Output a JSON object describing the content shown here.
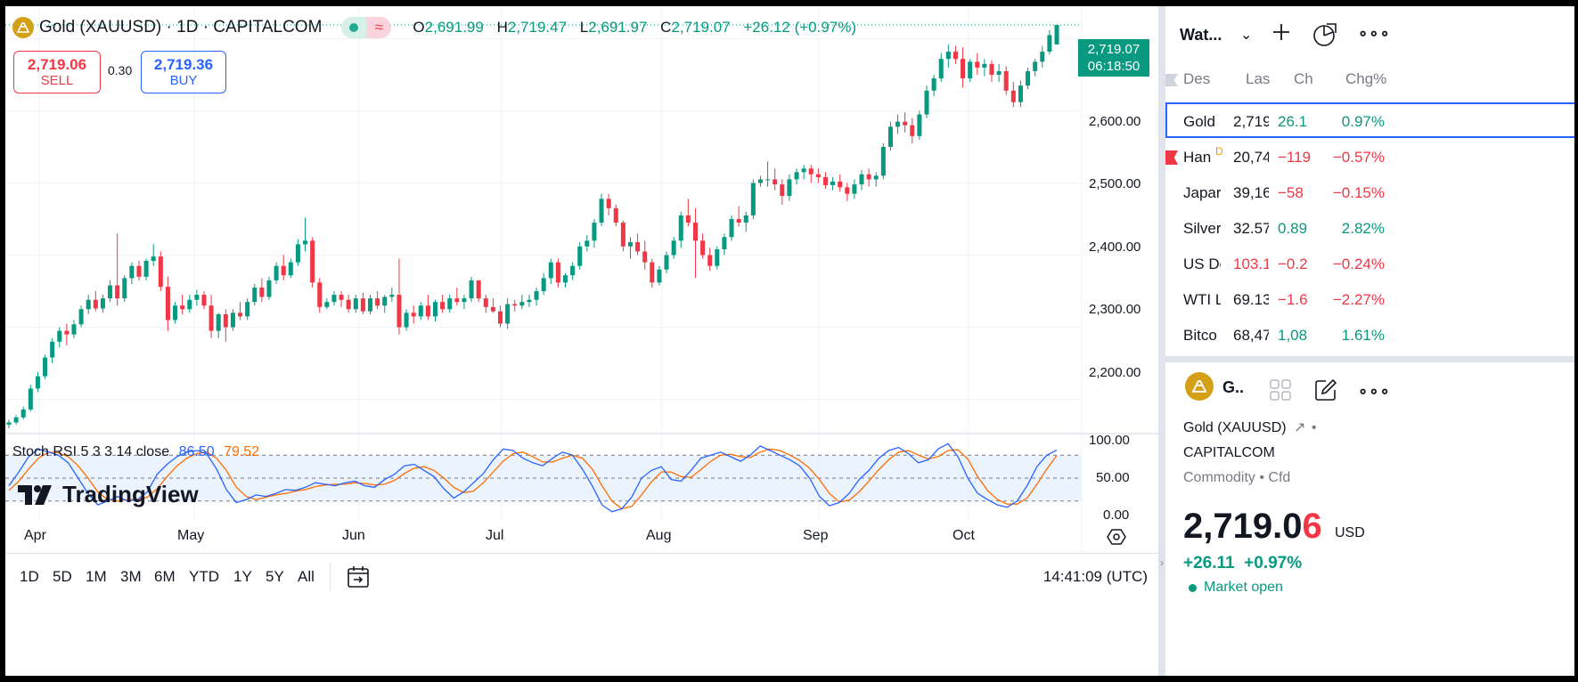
{
  "symbol": {
    "title": "Gold (XAUUSD) · 1D · CAPITALCOM",
    "ohlc": {
      "o_label": "O",
      "o": "2,691.99",
      "h_label": "H",
      "h": "2,719.47",
      "l_label": "L",
      "l": "2,691.97",
      "c_label": "C",
      "c": "2,719.07",
      "change": "+26.12 (+0.97%)"
    },
    "wave_glyph": "≈"
  },
  "trade": {
    "sell_price": "2,719.06",
    "sell_label": "SELL",
    "spread": "0.30",
    "buy_price": "2,719.36",
    "buy_label": "BUY"
  },
  "price_tag": {
    "price": "2,719.07",
    "countdown": "06:18:50"
  },
  "price_axis": [
    "2,600.00",
    "2,500.00",
    "2,400.00",
    "2,300.00",
    "2,200.00"
  ],
  "stoch": {
    "label": "Stoch RSI 5 3 3 14 close",
    "k": "86.50",
    "d": "79.52",
    "axis": [
      "100.00",
      "50.00",
      "0.00"
    ]
  },
  "months": [
    "Apr",
    "May",
    "Jun",
    "Jul",
    "Aug",
    "Sep",
    "Oct"
  ],
  "brand": "TradingView",
  "ranges": [
    "1D",
    "5D",
    "1M",
    "3M",
    "6M",
    "YTD",
    "1Y",
    "5Y",
    "All"
  ],
  "clock": "14:41:09 (UTC)",
  "chart_data": {
    "type": "candlestick",
    "price_range": [
      2155,
      2745
    ],
    "candles_ohlc": [
      [
        2165,
        2172,
        2160,
        2168
      ],
      [
        2168,
        2178,
        2165,
        2175
      ],
      [
        2175,
        2190,
        2172,
        2186
      ],
      [
        2186,
        2220,
        2183,
        2215
      ],
      [
        2215,
        2238,
        2210,
        2232
      ],
      [
        2232,
        2262,
        2228,
        2258
      ],
      [
        2258,
        2285,
        2250,
        2280
      ],
      [
        2280,
        2300,
        2272,
        2295
      ],
      [
        2295,
        2305,
        2275,
        2290
      ],
      [
        2290,
        2310,
        2285,
        2304
      ],
      [
        2304,
        2330,
        2300,
        2325
      ],
      [
        2325,
        2345,
        2318,
        2338
      ],
      [
        2338,
        2350,
        2322,
        2326
      ],
      [
        2326,
        2345,
        2320,
        2340
      ],
      [
        2340,
        2365,
        2335,
        2358
      ],
      [
        2358,
        2430,
        2330,
        2340
      ],
      [
        2340,
        2372,
        2335,
        2368
      ],
      [
        2368,
        2390,
        2360,
        2385
      ],
      [
        2385,
        2392,
        2365,
        2370
      ],
      [
        2370,
        2395,
        2365,
        2392
      ],
      [
        2392,
        2415,
        2385,
        2398
      ],
      [
        2398,
        2405,
        2350,
        2356
      ],
      [
        2356,
        2370,
        2295,
        2310
      ],
      [
        2310,
        2335,
        2305,
        2330
      ],
      [
        2330,
        2345,
        2318,
        2325
      ],
      [
        2325,
        2345,
        2320,
        2338
      ],
      [
        2338,
        2352,
        2330,
        2345
      ],
      [
        2345,
        2350,
        2325,
        2330
      ],
      [
        2330,
        2345,
        2285,
        2295
      ],
      [
        2295,
        2320,
        2285,
        2318
      ],
      [
        2318,
        2325,
        2280,
        2300
      ],
      [
        2300,
        2325,
        2295,
        2320
      ],
      [
        2320,
        2335,
        2310,
        2315
      ],
      [
        2315,
        2340,
        2310,
        2335
      ],
      [
        2335,
        2360,
        2330,
        2355
      ],
      [
        2355,
        2368,
        2335,
        2342
      ],
      [
        2342,
        2370,
        2338,
        2365
      ],
      [
        2365,
        2390,
        2360,
        2385
      ],
      [
        2385,
        2400,
        2365,
        2372
      ],
      [
        2372,
        2395,
        2368,
        2390
      ],
      [
        2390,
        2422,
        2385,
        2415
      ],
      [
        2415,
        2452,
        2405,
        2420
      ],
      [
        2420,
        2425,
        2355,
        2362
      ],
      [
        2362,
        2368,
        2320,
        2328
      ],
      [
        2328,
        2340,
        2325,
        2335
      ],
      [
        2335,
        2350,
        2330,
        2345
      ],
      [
        2345,
        2350,
        2328,
        2338
      ],
      [
        2338,
        2345,
        2320,
        2325
      ],
      [
        2325,
        2345,
        2320,
        2340
      ],
      [
        2340,
        2348,
        2318,
        2322
      ],
      [
        2322,
        2345,
        2318,
        2340
      ],
      [
        2340,
        2350,
        2325,
        2330
      ],
      [
        2330,
        2345,
        2320,
        2342
      ],
      [
        2342,
        2355,
        2335,
        2345
      ],
      [
        2345,
        2395,
        2290,
        2300
      ],
      [
        2300,
        2325,
        2295,
        2320
      ],
      [
        2320,
        2330,
        2305,
        2315
      ],
      [
        2315,
        2335,
        2310,
        2330
      ],
      [
        2330,
        2345,
        2310,
        2315
      ],
      [
        2315,
        2338,
        2308,
        2335
      ],
      [
        2335,
        2345,
        2320,
        2325
      ],
      [
        2325,
        2345,
        2320,
        2340
      ],
      [
        2340,
        2355,
        2330,
        2335
      ],
      [
        2335,
        2345,
        2325,
        2340
      ],
      [
        2340,
        2370,
        2335,
        2365
      ],
      [
        2365,
        2365,
        2335,
        2340
      ],
      [
        2340,
        2345,
        2320,
        2328
      ],
      [
        2328,
        2340,
        2320,
        2322
      ],
      [
        2322,
        2330,
        2300,
        2305
      ],
      [
        2305,
        2340,
        2298,
        2332
      ],
      [
        2332,
        2338,
        2322,
        2330
      ],
      [
        2330,
        2345,
        2325,
        2335
      ],
      [
        2335,
        2345,
        2328,
        2338
      ],
      [
        2338,
        2355,
        2330,
        2350
      ],
      [
        2350,
        2375,
        2345,
        2368
      ],
      [
        2368,
        2395,
        2360,
        2390
      ],
      [
        2390,
        2395,
        2355,
        2362
      ],
      [
        2362,
        2375,
        2355,
        2372
      ],
      [
        2372,
        2390,
        2365,
        2385
      ],
      [
        2385,
        2418,
        2380,
        2412
      ],
      [
        2412,
        2428,
        2405,
        2420
      ],
      [
        2420,
        2450,
        2410,
        2445
      ],
      [
        2445,
        2485,
        2440,
        2478
      ],
      [
        2478,
        2485,
        2455,
        2465
      ],
      [
        2465,
        2470,
        2440,
        2445
      ],
      [
        2445,
        2448,
        2405,
        2412
      ],
      [
        2412,
        2425,
        2395,
        2418
      ],
      [
        2418,
        2430,
        2400,
        2405
      ],
      [
        2405,
        2420,
        2380,
        2390
      ],
      [
        2390,
        2395,
        2355,
        2362
      ],
      [
        2362,
        2385,
        2358,
        2380
      ],
      [
        2380,
        2405,
        2375,
        2400
      ],
      [
        2400,
        2425,
        2395,
        2420
      ],
      [
        2420,
        2460,
        2410,
        2455
      ],
      [
        2455,
        2478,
        2440,
        2445
      ],
      [
        2445,
        2465,
        2368,
        2420
      ],
      [
        2420,
        2430,
        2395,
        2400
      ],
      [
        2400,
        2410,
        2378,
        2385
      ],
      [
        2385,
        2412,
        2380,
        2408
      ],
      [
        2408,
        2430,
        2400,
        2425
      ],
      [
        2425,
        2455,
        2420,
        2450
      ],
      [
        2450,
        2468,
        2440,
        2445
      ],
      [
        2445,
        2460,
        2432,
        2455
      ],
      [
        2455,
        2505,
        2450,
        2500
      ],
      [
        2500,
        2510,
        2495,
        2505
      ],
      [
        2505,
        2530,
        2495,
        2505
      ],
      [
        2505,
        2520,
        2490,
        2498
      ],
      [
        2498,
        2505,
        2470,
        2482
      ],
      [
        2482,
        2512,
        2475,
        2505
      ],
      [
        2505,
        2520,
        2498,
        2515
      ],
      [
        2515,
        2525,
        2505,
        2520
      ],
      [
        2520,
        2525,
        2500,
        2512
      ],
      [
        2512,
        2520,
        2500,
        2508
      ],
      [
        2508,
        2515,
        2492,
        2497
      ],
      [
        2497,
        2508,
        2490,
        2502
      ],
      [
        2502,
        2512,
        2488,
        2494
      ],
      [
        2494,
        2500,
        2475,
        2485
      ],
      [
        2485,
        2505,
        2478,
        2498
      ],
      [
        2498,
        2518,
        2490,
        2512
      ],
      [
        2512,
        2520,
        2495,
        2505
      ],
      [
        2505,
        2515,
        2495,
        2510
      ],
      [
        2510,
        2555,
        2505,
        2550
      ],
      [
        2550,
        2585,
        2545,
        2578
      ],
      [
        2578,
        2595,
        2568,
        2585
      ],
      [
        2585,
        2598,
        2570,
        2580
      ],
      [
        2580,
        2590,
        2555,
        2565
      ],
      [
        2565,
        2600,
        2560,
        2595
      ],
      [
        2595,
        2635,
        2590,
        2628
      ],
      [
        2628,
        2650,
        2620,
        2645
      ],
      [
        2645,
        2680,
        2640,
        2672
      ],
      [
        2672,
        2692,
        2660,
        2682
      ],
      [
        2682,
        2690,
        2665,
        2672
      ],
      [
        2672,
        2688,
        2632,
        2645
      ],
      [
        2645,
        2672,
        2640,
        2668
      ],
      [
        2668,
        2680,
        2650,
        2660
      ],
      [
        2660,
        2672,
        2648,
        2665
      ],
      [
        2665,
        2670,
        2640,
        2650
      ],
      [
        2650,
        2665,
        2640,
        2655
      ],
      [
        2655,
        2662,
        2622,
        2628
      ],
      [
        2628,
        2640,
        2605,
        2612
      ],
      [
        2612,
        2642,
        2605,
        2635
      ],
      [
        2635,
        2660,
        2630,
        2655
      ],
      [
        2655,
        2672,
        2648,
        2668
      ],
      [
        2668,
        2690,
        2660,
        2682
      ],
      [
        2682,
        2712,
        2678,
        2705
      ],
      [
        2692,
        2719.47,
        2691.97,
        2719.07
      ]
    ],
    "stoch_k": [
      40,
      58,
      78,
      88,
      84,
      80,
      70,
      50,
      30,
      15,
      20,
      26,
      20,
      22,
      32,
      55,
      68,
      78,
      84,
      86,
      82,
      62,
      35,
      18,
      22,
      28,
      26,
      30,
      35,
      34,
      38,
      44,
      42,
      40,
      44,
      46,
      40,
      38,
      48,
      55,
      66,
      68,
      60,
      52,
      36,
      24,
      32,
      44,
      56,
      74,
      88,
      86,
      76,
      70,
      66,
      76,
      84,
      80,
      62,
      40,
      15,
      6,
      10,
      25,
      50,
      60,
      65,
      48,
      46,
      60,
      76,
      80,
      84,
      78,
      72,
      80,
      92,
      86,
      80,
      74,
      66,
      50,
      26,
      14,
      18,
      30,
      48,
      60,
      76,
      86,
      90,
      82,
      70,
      74,
      88,
      95,
      78,
      50,
      30,
      22,
      15,
      12,
      20,
      40,
      65,
      80,
      86.5
    ],
    "stoch_d": [
      34,
      46,
      62,
      76,
      84,
      83,
      78,
      66,
      50,
      32,
      22,
      20,
      22,
      22,
      25,
      36,
      52,
      66,
      76,
      82,
      84,
      76,
      60,
      38,
      26,
      22,
      25,
      28,
      30,
      33,
      35,
      39,
      41,
      42,
      42,
      44,
      43,
      41,
      42,
      47,
      56,
      63,
      65,
      60,
      50,
      38,
      31,
      33,
      44,
      58,
      72,
      82,
      84,
      78,
      71,
      71,
      76,
      80,
      76,
      62,
      40,
      20,
      10,
      13,
      28,
      45,
      58,
      58,
      52,
      51,
      61,
      72,
      80,
      81,
      78,
      77,
      84,
      88,
      86,
      80,
      73,
      63,
      48,
      30,
      19,
      21,
      32,
      46,
      61,
      74,
      84,
      86,
      80,
      75,
      78,
      86,
      87,
      75,
      52,
      34,
      22,
      16,
      16,
      24,
      42,
      62,
      79.52
    ]
  },
  "watchlist": {
    "title": "Wat...",
    "columns": [
      "Des",
      "Las",
      "Ch",
      "Chg%"
    ],
    "rows": [
      {
        "name": "Gold",
        "last": "2,719",
        "ch": "26.1",
        "chg": "0.97%",
        "dir": "pos",
        "selected": true
      },
      {
        "name": "Han",
        "last": "20,74",
        "ch": "−119",
        "chg": "−0.57%",
        "dir": "neg",
        "flag": true,
        "d": "D"
      },
      {
        "name": "Japar",
        "last": "39,16",
        "ch": "−58",
        "chg": "−0.15%",
        "dir": "neg"
      },
      {
        "name": "Silver",
        "last": "32.57",
        "ch": "0.89",
        "chg": "2.82%",
        "dir": "pos"
      },
      {
        "name": "US Dc",
        "last": "103.1",
        "ch": "−0.2",
        "chg": "−0.24%",
        "dir": "neg",
        "last_red": true
      },
      {
        "name": "WTI L",
        "last": "69.13",
        "ch": "−1.6",
        "chg": "−2.27%",
        "dir": "neg"
      },
      {
        "name": "Bitco",
        "last": "68,47",
        "ch": "1,08",
        "chg": "1.61%",
        "dir": "pos"
      }
    ]
  },
  "details": {
    "short_title": "G..",
    "name": "Gold (XAUUSD)",
    "exchange": "CAPITALCOM",
    "type": "Commodity • Cfd",
    "price_main": "2,719.0",
    "price_last": "6",
    "currency": "USD",
    "change": "+26.11",
    "change_pct": "+0.97%",
    "market_status": "Market open"
  },
  "colors": {
    "up": "#089981",
    "down": "#f23645",
    "stoch_k": "#2962ff",
    "stoch_d": "#ff6d00",
    "accent": "#2962ff"
  }
}
